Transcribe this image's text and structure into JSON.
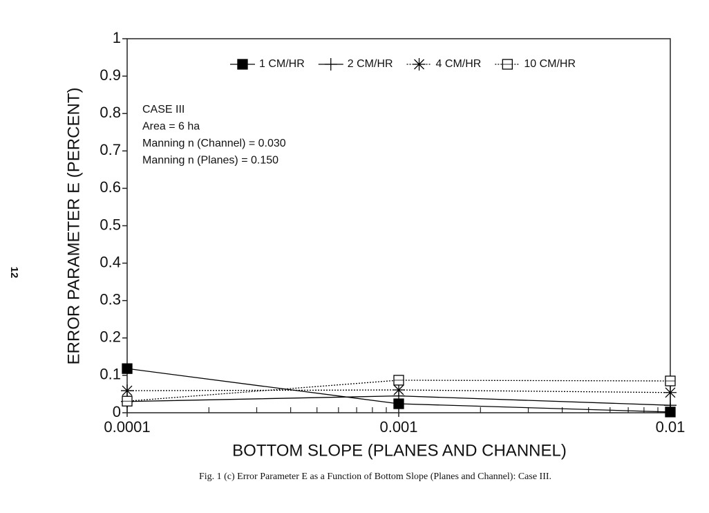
{
  "chart_data": {
    "type": "line",
    "xlabel": "BOTTOM SLOPE (PLANES AND CHANNEL)",
    "ylabel": "ERROR PARAMETER E (PERCENT)",
    "x": [
      0.0001,
      0.001,
      0.01
    ],
    "log_x": true,
    "xlim": [
      0.0001,
      0.01
    ],
    "xticks": [
      0.0001,
      0.001,
      0.01
    ],
    "xminorticks": [
      0.0002,
      0.0003,
      0.0004,
      0.0005,
      0.0006,
      0.0007,
      0.0008,
      0.0009,
      0.002,
      0.003,
      0.004,
      0.005,
      0.006,
      0.007,
      0.008,
      0.009
    ],
    "ylim": [
      0,
      1
    ],
    "yticks": [
      0,
      0.1,
      0.2,
      0.3,
      0.4,
      0.5,
      0.6,
      0.7,
      0.8,
      0.9,
      1
    ],
    "legend": "top",
    "series": [
      {
        "name": "1 CM/HR",
        "color": "#000000",
        "marker": "filled-square",
        "dash": "solid",
        "values": [
          0.118,
          0.024,
          0.002
        ]
      },
      {
        "name": "2 CM/HR",
        "color": "#000000",
        "marker": "plus",
        "dash": "solid",
        "values": [
          0.03,
          0.045,
          0.02
        ]
      },
      {
        "name": "4 CM/HR",
        "color": "#000000",
        "marker": "asterisk",
        "dash": "dotted",
        "values": [
          0.059,
          0.061,
          0.054
        ]
      },
      {
        "name": "10 CM/HR",
        "color": "#000000",
        "marker": "open-square",
        "dash": "dotted",
        "values": [
          0.031,
          0.087,
          0.085
        ]
      }
    ],
    "annotation": [
      "CASE III",
      "Area = 6 ha",
      "Manning n (Channel) = 0.030",
      "Manning n (Planes) = 0.150"
    ],
    "caption": "Fig. 1 (c) Error Parameter E as a Function of Bottom Slope (Planes and Channel): Case III.",
    "page_number": "12"
  }
}
